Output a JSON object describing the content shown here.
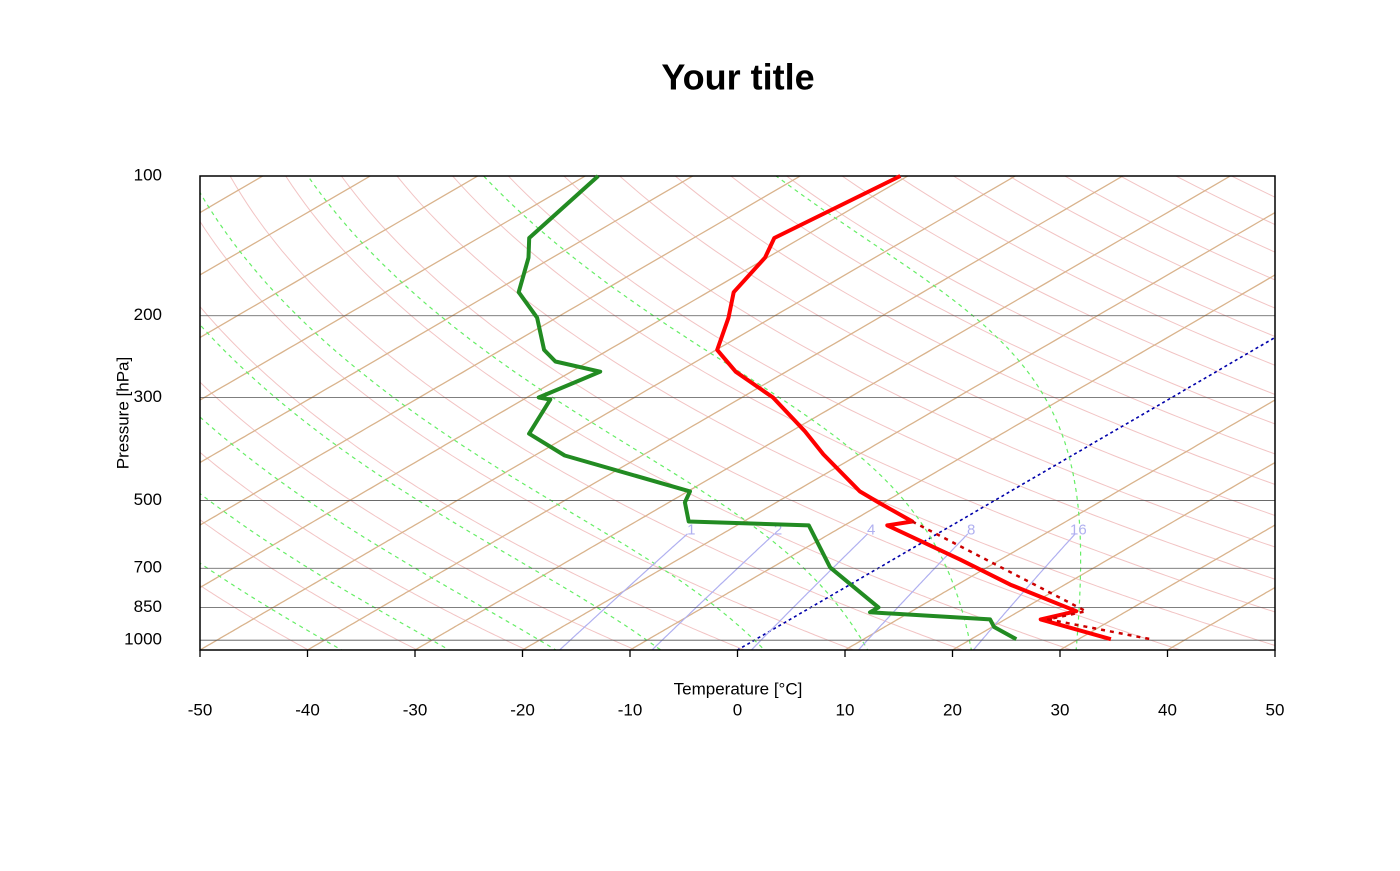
{
  "chart_data": {
    "type": "skewt",
    "title": "Your title",
    "xlabel": "Temperature [°C]",
    "ylabel": "Pressure [hPa]",
    "xlim": [
      -50,
      50
    ],
    "xticks": [
      -50,
      -40,
      -30,
      -20,
      -10,
      0,
      10,
      20,
      30,
      40,
      50
    ],
    "ylim": [
      1050,
      100
    ],
    "yticks": [
      100,
      200,
      300,
      500,
      700,
      850,
      1000
    ],
    "log_y": true,
    "mixing_ratio_labels": [
      1,
      2,
      4,
      8,
      16
    ],
    "series": [
      {
        "color": "#ff0000",
        "style": "solid",
        "pressure": [
          100,
          136,
          150,
          178,
          202,
          237,
          264,
          300,
          355,
          398,
          478,
          505,
          555,
          566,
          670,
          759,
          866,
          902,
          995
        ],
        "values": [
          -60.7,
          -62.5,
          -60.2,
          -57.6,
          -54.0,
          -49.9,
          -44.7,
          -37.1,
          -28.7,
          -23.3,
          -14.0,
          -10.5,
          -4.3,
          -6.0,
          6.2,
          14.9,
          25.3,
          23.3,
          33.0
        ]
      },
      {
        "color": "#228b22",
        "style": "solid",
        "pressure": [
          100,
          136,
          150,
          178,
          202,
          237,
          251,
          264,
          300,
          303,
          359,
          400,
          478,
          505,
          555,
          566,
          697,
          850,
          871,
          902,
          937,
          995
        ],
        "values": [
          -88.8,
          -85.3,
          -82.2,
          -77.6,
          -71.8,
          -66.0,
          -63.1,
          -57.3,
          -58.9,
          -57.5,
          -54.0,
          -47.2,
          -29.8,
          -28.5,
          -25.1,
          -13.3,
          -4.6,
          6.3,
          6.3,
          18.6,
          20.2,
          24.2
        ]
      },
      {
        "color": "#cc0000",
        "style": "dotted",
        "pressure": [
          555,
          866,
          902,
          995
        ],
        "values": [
          -4.3,
          26.2,
          24.0,
          36.7
        ]
      }
    ]
  }
}
